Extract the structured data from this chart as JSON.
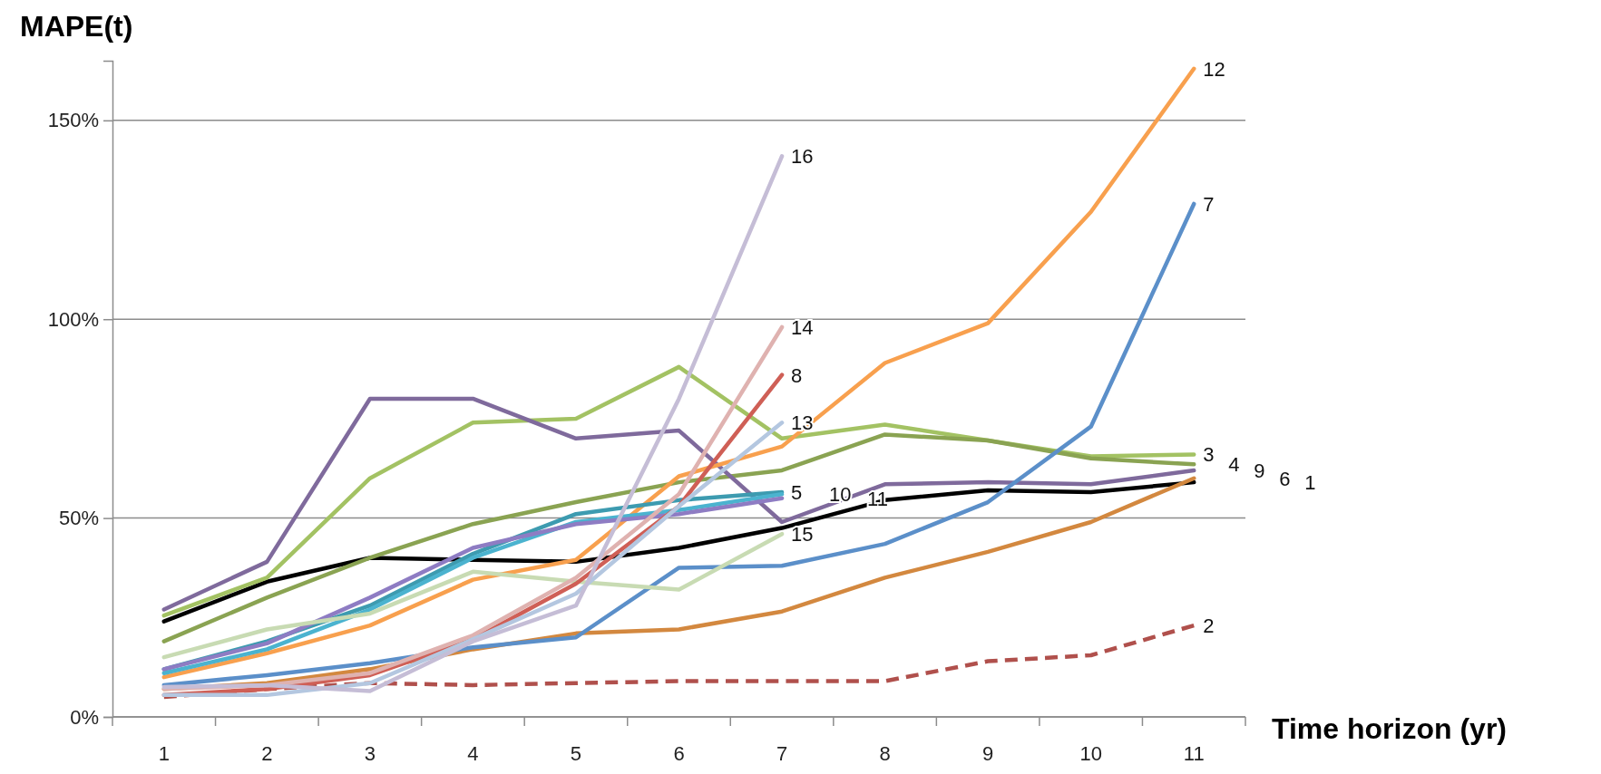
{
  "chart_data": {
    "type": "line",
    "xlabel": "Time horizon (yr)",
    "ylabel": "MAPE(t)",
    "categories": [
      "1",
      "2",
      "3",
      "4",
      "5",
      "6",
      "7",
      "8",
      "9",
      "10",
      "11"
    ],
    "ylim": [
      0,
      165
    ],
    "yticks": [
      {
        "value": 0,
        "label": "0%"
      },
      {
        "value": 50,
        "label": "50%"
      },
      {
        "value": 100,
        "label": "100%"
      },
      {
        "value": 150,
        "label": "150%"
      }
    ],
    "grid": "y",
    "legend": false,
    "marker": "none",
    "series": [
      {
        "name": "1",
        "color": "#000000",
        "values": [
          24,
          34,
          40,
          39.5,
          39,
          42.5,
          47.5,
          54.5,
          57,
          56.5,
          59
        ]
      },
      {
        "name": "2",
        "color": "#b0504c",
        "line_style": "dashed",
        "values": [
          5,
          7,
          8.5,
          8,
          8.5,
          9,
          9,
          9,
          14,
          15.5,
          23
        ]
      },
      {
        "name": "3",
        "color": "#a3c263",
        "values": [
          25.5,
          35,
          60,
          74,
          75,
          88,
          70,
          73.5,
          69.5,
          65.5,
          66
        ]
      },
      {
        "name": "4",
        "color": "#8aa352",
        "values": [
          19,
          30,
          40,
          48.5,
          54,
          59,
          62,
          71,
          69.5,
          65,
          63.5
        ]
      },
      {
        "name": "9",
        "color": "#7f6a9c",
        "values": [
          27,
          39,
          80,
          80,
          70,
          72,
          49,
          58.5,
          59,
          58.5,
          62
        ]
      },
      {
        "name": "6",
        "color": "#d3883f",
        "values": [
          7,
          8.5,
          12,
          17,
          21,
          22,
          26.5,
          35,
          41.5,
          49,
          60
        ]
      },
      {
        "name": "7",
        "color": "#5b8fc9",
        "values": [
          8,
          10.5,
          13.5,
          17.5,
          20,
          37.5,
          38,
          43.5,
          54,
          73,
          129
        ]
      },
      {
        "name": "12",
        "color": "#f8a04e",
        "values": [
          10,
          16,
          23,
          34.5,
          39.5,
          60.5,
          68,
          89,
          99,
          127,
          163
        ]
      },
      {
        "name": "5",
        "color": "#3d9bb0",
        "values": [
          12,
          19,
          28,
          41,
          51,
          54.5,
          56.5,
          null,
          null,
          null,
          null
        ]
      },
      {
        "name": "10",
        "color": "#4bb3cf",
        "values": [
          11,
          17,
          27,
          40,
          49,
          52,
          56,
          null,
          null,
          null,
          null
        ]
      },
      {
        "name": "11",
        "color": "#8e7cc3",
        "values": [
          12,
          18.5,
          30,
          42.5,
          48.5,
          51,
          55,
          null,
          null,
          null,
          null
        ]
      },
      {
        "name": "15",
        "color": "#c8dbb3",
        "values": [
          15,
          22,
          26,
          36.5,
          34,
          32,
          46,
          null,
          null,
          null,
          null
        ]
      },
      {
        "name": "8",
        "color": "#cf5f56",
        "values": [
          5.5,
          7,
          10.5,
          19.5,
          33.5,
          53,
          86,
          null,
          null,
          null,
          null
        ]
      },
      {
        "name": "14",
        "color": "#dfb2b0",
        "values": [
          7,
          8,
          11,
          20.5,
          35,
          56,
          98,
          null,
          null,
          null,
          null
        ]
      },
      {
        "name": "13",
        "color": "#b4c7e0",
        "values": [
          5.5,
          5.5,
          8.5,
          19.5,
          31,
          53,
          74,
          null,
          null,
          null,
          null
        ]
      },
      {
        "name": "16",
        "color": "#c5bdd6",
        "values": [
          7.5,
          8,
          6.5,
          19,
          28,
          80,
          141,
          null,
          null,
          null,
          null
        ]
      }
    ]
  }
}
